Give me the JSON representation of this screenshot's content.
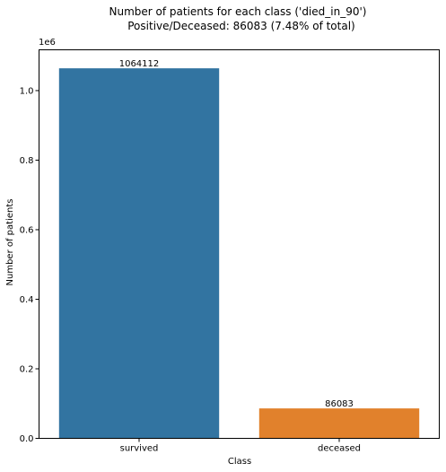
{
  "chart_data": {
    "type": "bar",
    "title": "Number of patients for each class ('died_in_90')",
    "subtitle": "Positive/Deceased: 86083 (7.48% of total)",
    "xlabel": "Class",
    "ylabel": "Number of patients",
    "offset_label": "1e6",
    "categories": [
      "survived",
      "deceased"
    ],
    "values": [
      1064112,
      86083
    ],
    "data_labels": [
      "1064112",
      "86083"
    ],
    "ylim": [
      0,
      1117318
    ],
    "yticks": [
      0,
      200000,
      400000,
      600000,
      800000,
      1000000
    ],
    "ytick_labels": [
      "0.0",
      "0.2",
      "0.4",
      "0.6",
      "0.8",
      "1.0"
    ],
    "colors": [
      "#3274a1",
      "#e1812c"
    ],
    "grid": false,
    "legend": "none"
  }
}
